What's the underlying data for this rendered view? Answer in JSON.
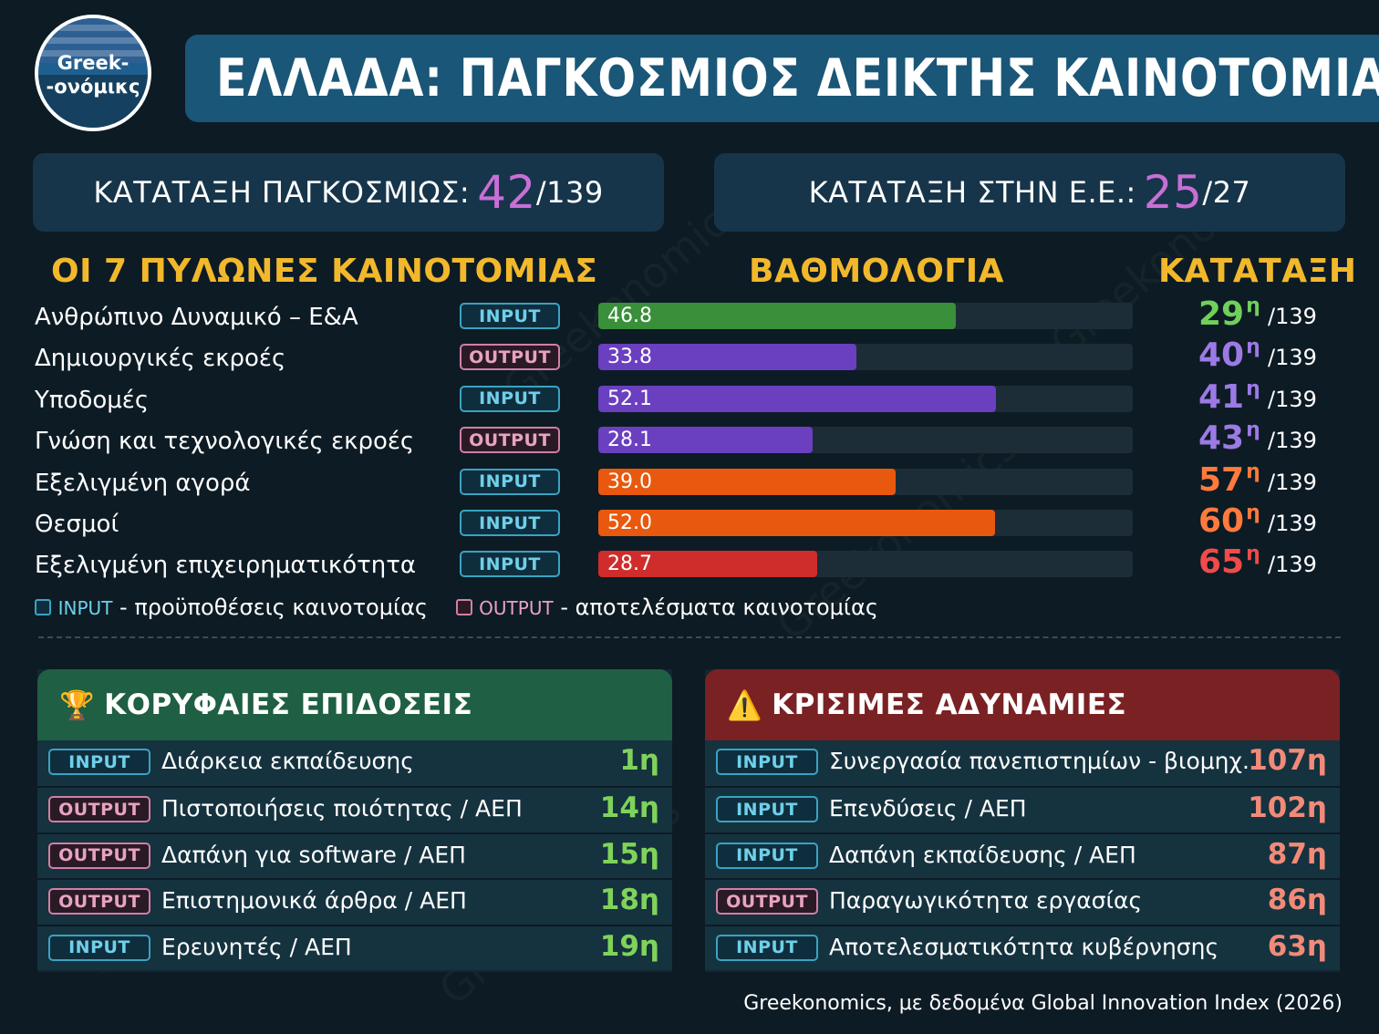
{
  "header": {
    "logo_line1": "Greek-",
    "logo_line2": "-ονόμικς",
    "title": "ΕΛΛΑΔΑ: ΠΑΓΚΟΣΜΙΟΣ ΔΕΙΚΤΗΣ ΚΑΙΝΟΤΟΜΙΑΣ"
  },
  "ranks": {
    "global": {
      "label": "ΚΑΤΑΤΑΞΗ ΠΑΓΚΟΣΜΙΩΣ:",
      "value": "42",
      "total": "/139"
    },
    "eu": {
      "label": "ΚΑΤΑΤΑΞΗ ΣΤΗΝ Ε.Ε.:",
      "value": "25",
      "total": "/27"
    }
  },
  "columns": {
    "pillars": "ΟΙ 7 ΠΥΛΩΝΕΣ ΚΑΙΝΟΤΟΜΙΑΣ",
    "score": "ΒΑΘΜΟΛΟΓΙΑ",
    "rank": "ΚΑΤΑΤΑΞΗ"
  },
  "chart_data": {
    "type": "bar",
    "categories": [
      "Ανθρώπινο Δυναμικό – Ε&Α",
      "Δημιουργικές εκροές",
      "Υποδομές",
      "Γνώση και τεχνολογικές εκροές",
      "Εξελιγμένη αγορά",
      "Θεσμοί",
      "Εξελιγμένη επιχειρηματικότητα"
    ],
    "values": [
      46.8,
      33.8,
      52.1,
      28.1,
      39.0,
      52.0,
      28.7
    ],
    "value_labels": [
      "46.8",
      "33.8",
      "52.1",
      "28.1",
      "39.0",
      "52.0",
      "28.7"
    ],
    "types": [
      "INPUT",
      "OUTPUT",
      "INPUT",
      "OUTPUT",
      "INPUT",
      "INPUT",
      "INPUT"
    ],
    "ranks": [
      "29",
      "40",
      "41",
      "43",
      "57",
      "60",
      "65"
    ],
    "rank_suffix": "η",
    "rank_total": "/139",
    "colors": [
      "#3a8f3a",
      "#6a3fc0",
      "#6a3fc0",
      "#6a3fc0",
      "#e8580e",
      "#e8580e",
      "#cf2c2c"
    ],
    "rank_colors": [
      "#6fd05a",
      "#9c7ae6",
      "#9c7ae6",
      "#9c7ae6",
      "#ff7a3c",
      "#ff7a3c",
      "#ef4b4b"
    ],
    "xlim": [
      0,
      70
    ],
    "title": "",
    "xlabel": "",
    "ylabel": ""
  },
  "legend": {
    "input_tag": "INPUT",
    "input_text": " - προϋποθέσεις καινοτομίας",
    "output_tag": "OUTPUT",
    "output_text": " - αποτελέσματα καινοτομίας"
  },
  "best": {
    "title": "ΚΟΡΥΦΑΙΕΣ ΕΠΙΔΟΣΕΙΣ",
    "icon": "trophy-icon",
    "items": [
      {
        "type": "INPUT",
        "name": "Διάρκεια εκπαίδευσης",
        "rank": "1η"
      },
      {
        "type": "OUTPUT",
        "name": "Πιστοποιήσεις ποιότητας / ΑΕΠ",
        "rank": "14η"
      },
      {
        "type": "OUTPUT",
        "name": "Δαπάνη για software / ΑΕΠ",
        "rank": "15η"
      },
      {
        "type": "OUTPUT",
        "name": "Επιστημονικά άρθρα / ΑΕΠ",
        "rank": "18η"
      },
      {
        "type": "INPUT",
        "name": "Ερευνητές / ΑΕΠ",
        "rank": "19η"
      }
    ]
  },
  "worst": {
    "title": "ΚΡΙΣΙΜΕΣ ΑΔΥΝΑΜΙΕΣ",
    "icon": "warning-icon",
    "items": [
      {
        "type": "INPUT",
        "name": "Συνεργασία πανεπιστημίων - βιομηχ.",
        "rank": "107η"
      },
      {
        "type": "INPUT",
        "name": "Επενδύσεις / ΑΕΠ",
        "rank": "102η"
      },
      {
        "type": "INPUT",
        "name": "Δαπάνη εκπαίδευσης / ΑΕΠ",
        "rank": "87η"
      },
      {
        "type": "OUTPUT",
        "name": "Παραγωγικότητα εργασίας",
        "rank": "86η"
      },
      {
        "type": "INPUT",
        "name": "Αποτελεσματικότητα κυβέρνησης",
        "rank": "63η"
      }
    ]
  },
  "source": "Greekonomics, με δεδομένα Global Innovation Index (2026)",
  "colors": {
    "background": "#0d1b24",
    "title_bar": "#1a5677",
    "accent_gold": "#f2b82c",
    "rank_highlight": "#c86fd6"
  }
}
